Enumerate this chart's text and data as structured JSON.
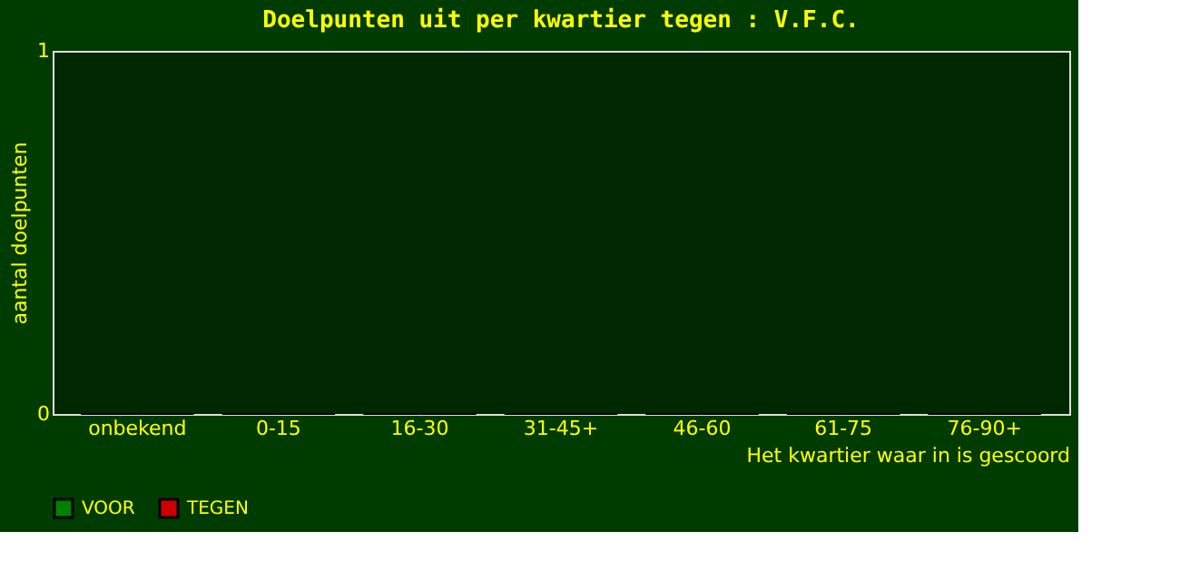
{
  "chart_data": {
    "type": "bar",
    "title": "Doelpunten uit per kwartier tegen : V.F.C.",
    "xlabel": "Het kwartier waar in is gescoord",
    "ylabel": "aantal doelpunten",
    "categories": [
      "onbekend",
      "0-15",
      "16-30",
      "31-45+",
      "46-60",
      "61-75",
      "76-90+"
    ],
    "series": [
      {
        "name": "VOOR",
        "color": "#008000",
        "values": [
          0,
          0,
          0,
          0,
          0,
          0,
          0
        ]
      },
      {
        "name": "TEGEN",
        "color": "#cc0000",
        "values": [
          0,
          0,
          0,
          0,
          0,
          0,
          0
        ]
      }
    ],
    "ylim": [
      0,
      1
    ],
    "yticks": [
      0,
      1
    ],
    "grid": false,
    "legend": "bottom"
  }
}
